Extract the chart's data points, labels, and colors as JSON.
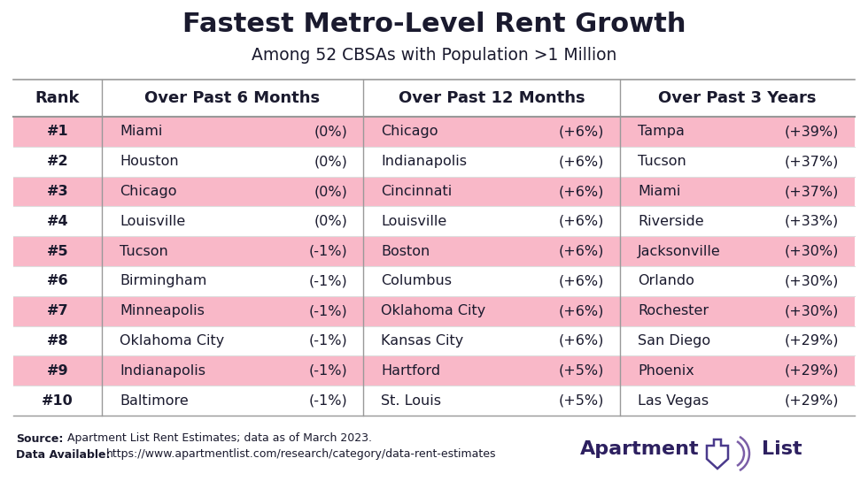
{
  "title": "Fastest Metro-Level Rent Growth",
  "subtitle": "Among 52 CBSAs with Population >1 Million",
  "columns": [
    "Rank",
    "Over Past 6 Months",
    "Over Past 12 Months",
    "Over Past 3 Years"
  ],
  "ranks": [
    "#1",
    "#2",
    "#3",
    "#4",
    "#5",
    "#6",
    "#7",
    "#8",
    "#9",
    "#10"
  ],
  "col6m_cities": [
    "Miami",
    "Houston",
    "Chicago",
    "Louisville",
    "Tucson",
    "Birmingham",
    "Minneapolis",
    "Oklahoma City",
    "Indianapolis",
    "Baltimore"
  ],
  "col6m_vals": [
    "(0%)",
    "(0%)",
    "(0%)",
    "(0%)",
    "(-1%)",
    "(-1%)",
    "(-1%)",
    "(-1%)",
    "(-1%)",
    "(-1%)"
  ],
  "col12m_cities": [
    "Chicago",
    "Indianapolis",
    "Cincinnati",
    "Louisville",
    "Boston",
    "Columbus",
    "Oklahoma City",
    "Kansas City",
    "Hartford",
    "St. Louis"
  ],
  "col12m_vals": [
    "(+6%)",
    "(+6%)",
    "(+6%)",
    "(+6%)",
    "(+6%)",
    "(+6%)",
    "(+6%)",
    "(+6%)",
    "(+5%)",
    "(+5%)"
  ],
  "col3y_cities": [
    "Tampa",
    "Tucson",
    "Miami",
    "Riverside",
    "Jacksonville",
    "Orlando",
    "Rochester",
    "San Diego",
    "Phoenix",
    "Las Vegas"
  ],
  "col3y_vals": [
    "(+39%)",
    "(+37%)",
    "(+37%)",
    "(+33%)",
    "(+30%)",
    "(+30%)",
    "(+30%)",
    "(+29%)",
    "(+29%)",
    "(+29%)"
  ],
  "pink_rows": [
    0,
    2,
    4,
    6,
    8
  ],
  "pink_color": "#f9b8c8",
  "white_color": "#ffffff",
  "bg_color": "#ffffff",
  "text_color": "#1a1a2e",
  "border_color": "#cccccc",
  "title_color": "#1a1a2e",
  "logo_color": "#2d2060",
  "logo_icon_color1": "#4a3a8c",
  "logo_icon_color2": "#7b5ea7",
  "divider_color": "#999999",
  "row_line_color": "#dddddd"
}
